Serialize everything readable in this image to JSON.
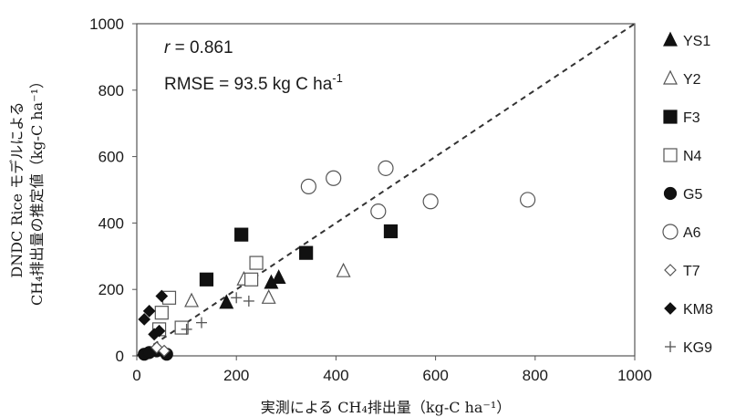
{
  "chart_data": {
    "type": "scatter",
    "xlabel": "実測による CH₄排出量（kg-C ha⁻¹）",
    "ylabel_line1": "DNDC Rice モデルによる",
    "ylabel_line2": "CH₄排出量の推定値（kg-C ha⁻¹）",
    "xlim": [
      0,
      1000
    ],
    "ylim": [
      0,
      1000
    ],
    "xticks": [
      0,
      200,
      400,
      600,
      800,
      1000
    ],
    "yticks": [
      0,
      200,
      400,
      600,
      800,
      1000
    ],
    "grid": false,
    "legend_position": "right",
    "reference_line": {
      "style": "dashed",
      "from": [
        0,
        0
      ],
      "to": [
        1000,
        1000
      ]
    },
    "annotations": {
      "r_symbol": "r",
      "r_value": " = 0.861",
      "rmse_text": "RMSE = 93.5 kg C ha",
      "rmse_sup": "-1"
    },
    "series": [
      {
        "name": "YS1",
        "marker": "triangle-filled",
        "points": [
          [
            180,
            160
          ],
          [
            270,
            220
          ],
          [
            285,
            235
          ]
        ]
      },
      {
        "name": "Y2",
        "marker": "triangle-open",
        "points": [
          [
            110,
            165
          ],
          [
            215,
            230
          ],
          [
            265,
            175
          ],
          [
            415,
            255
          ]
        ]
      },
      {
        "name": "F3",
        "marker": "square-filled",
        "points": [
          [
            140,
            230
          ],
          [
            210,
            365
          ],
          [
            340,
            310
          ],
          [
            510,
            375
          ]
        ]
      },
      {
        "name": "N4",
        "marker": "square-open",
        "points": [
          [
            45,
            80
          ],
          [
            50,
            130
          ],
          [
            65,
            175
          ],
          [
            90,
            85
          ],
          [
            230,
            230
          ],
          [
            240,
            280
          ]
        ]
      },
      {
        "name": "G5",
        "marker": "circle-filled",
        "points": [
          [
            15,
            5
          ],
          [
            25,
            10
          ],
          [
            40,
            15
          ],
          [
            60,
            5
          ]
        ]
      },
      {
        "name": "A6",
        "marker": "circle-open",
        "points": [
          [
            345,
            510
          ],
          [
            395,
            535
          ],
          [
            485,
            435
          ],
          [
            500,
            565
          ],
          [
            590,
            465
          ],
          [
            785,
            470
          ]
        ]
      },
      {
        "name": "T7",
        "marker": "diamond-open",
        "points": [
          [
            40,
            25
          ],
          [
            55,
            15
          ]
        ]
      },
      {
        "name": "KM8",
        "marker": "diamond-filled",
        "points": [
          [
            15,
            110
          ],
          [
            25,
            135
          ],
          [
            35,
            65
          ],
          [
            45,
            75
          ],
          [
            50,
            180
          ]
        ]
      },
      {
        "name": "KG9",
        "marker": "plus",
        "points": [
          [
            100,
            80
          ],
          [
            130,
            100
          ],
          [
            200,
            175
          ],
          [
            225,
            165
          ]
        ]
      }
    ]
  }
}
